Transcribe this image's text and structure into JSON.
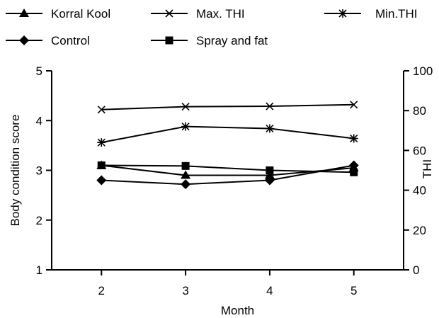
{
  "chart_data": {
    "type": "line",
    "x": [
      2,
      3,
      4,
      5
    ],
    "xlabel": "Month",
    "ylabel": "Body condition score",
    "y2label": "THI",
    "xlim": [
      1.4,
      5.6
    ],
    "ylim": [
      1,
      5
    ],
    "y2lim": [
      0,
      100
    ],
    "x_ticks": [
      "2",
      "3",
      "4",
      "5"
    ],
    "y_ticks": [
      "1",
      "2",
      "3",
      "4",
      "5"
    ],
    "y2_ticks": [
      "0",
      "20",
      "40",
      "60",
      "80",
      "100"
    ],
    "grid": false,
    "legend_position": "top",
    "series": [
      {
        "name": "Korral Kool",
        "axis": "left",
        "marker": "triangle",
        "values": [
          3.1,
          2.9,
          2.9,
          3.05
        ]
      },
      {
        "name": "Control",
        "axis": "left",
        "marker": "diamond",
        "values": [
          2.8,
          2.72,
          2.8,
          3.1
        ]
      },
      {
        "name": "Max. THI",
        "axis": "right",
        "marker": "x",
        "values": [
          80.5,
          82,
          82.2,
          83
        ]
      },
      {
        "name": "Spray and fat",
        "axis": "right",
        "marker": "square",
        "values": [
          52.5,
          52.2,
          50,
          49
        ]
      },
      {
        "name": "Min.THI",
        "axis": "right",
        "marker": "star",
        "values": [
          64,
          72,
          71,
          66
        ]
      }
    ]
  }
}
